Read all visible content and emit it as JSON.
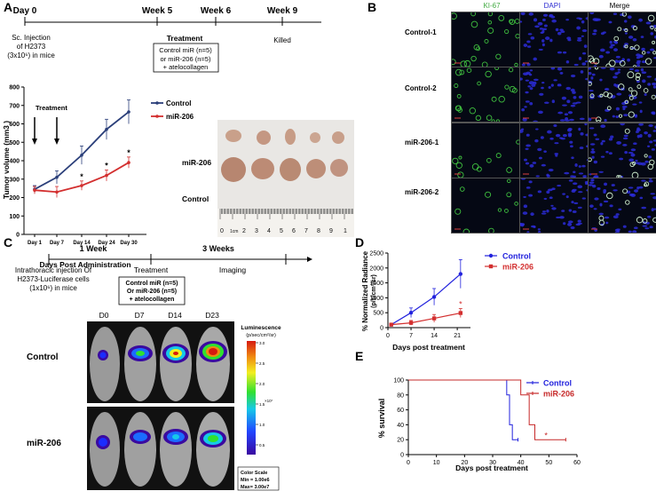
{
  "panel_labels": {
    "a": "A",
    "b": "B",
    "c": "C",
    "d": "D",
    "e": "E"
  },
  "timeline_a": {
    "points": [
      "Day 0",
      "Week 5",
      "Week 6",
      "Week 9"
    ],
    "injection": [
      "Sc. Injection",
      "of H2373",
      "(3x10⁶) in mice"
    ],
    "treatment_title": "Treatment",
    "treatment_box": [
      "Control miR (n=5)",
      "or miR-206 (n=5)",
      "+ atelocollagen"
    ],
    "killed": "Killed"
  },
  "photo_a": {
    "row_labels": [
      "miR-206",
      "Control"
    ],
    "ruler_numbers": [
      "0",
      "1cm",
      "2",
      "3",
      "4",
      "5",
      "6",
      "7",
      "8",
      "9",
      "1"
    ]
  },
  "timeline_c": {
    "labels": [
      "1 Week",
      "3 Weeks"
    ],
    "injection": [
      "Intrathoracic injection Of",
      "H2373-Luciferase cells",
      "(1x10⁶) in mice"
    ],
    "treatment_title": "Treatment",
    "imaging": "Imaging",
    "treatment_box": [
      "Control miR (n=5)",
      "Or miR-206 (n=5)",
      "+ atelocollagen"
    ]
  },
  "imaging_c": {
    "days": [
      "D0",
      "D7",
      "D14",
      "D23"
    ],
    "rows": [
      "Control",
      "miR-206"
    ],
    "colorbar_title": [
      "Luminescence",
      "(p/sec/cm²/sr)"
    ],
    "colorbar_ticks": [
      "3.0",
      "2.5",
      "2.0",
      "1.5",
      "1.0",
      "0.5"
    ],
    "colorbar_exp": "×10⁷",
    "scale_box": [
      "Color Scale",
      "Min = 1.00e6",
      "Max= 3.00e7"
    ]
  },
  "micro_b": {
    "col_headers": [
      "KI-67",
      "DAPI",
      "Merge"
    ],
    "row_labels": [
      "Control-1",
      "Control-2",
      "miR-206-1",
      "miR-206-2"
    ],
    "colors": {
      "ki67": "#3fbf3f",
      "dapi": "#3a3aff",
      "merge": "#ffffff"
    }
  },
  "chart_data": [
    {
      "id": "A",
      "type": "line",
      "categories": [
        "Day 1",
        "Day 7",
        "Day 14",
        "Day 24",
        "Day 30"
      ],
      "series": [
        {
          "name": "Control",
          "color": "#2b3f7a",
          "values": [
            245,
            310,
            430,
            570,
            665
          ],
          "errors": [
            20,
            35,
            50,
            55,
            65
          ]
        },
        {
          "name": "miR-206",
          "color": "#d32f2f",
          "values": [
            240,
            230,
            265,
            320,
            390
          ],
          "errors": [
            20,
            30,
            25,
            30,
            30
          ]
        }
      ],
      "ylabel": "Tumor volume (mm3 )",
      "xlabel": "Days Post Administration",
      "ylim": [
        0,
        800
      ],
      "yticks": [
        0,
        100,
        200,
        300,
        400,
        500,
        600,
        700,
        800
      ],
      "significance": [
        "",
        "",
        "*",
        "*",
        "*"
      ],
      "annotation": "Treatment",
      "arrows_at": [
        "Day 1",
        "Day 7"
      ],
      "legend": "right"
    },
    {
      "id": "D",
      "type": "line",
      "x": [
        1,
        7,
        14,
        22
      ],
      "series": [
        {
          "name": "Control",
          "color": "#2222dd",
          "values": [
            100,
            500,
            1030,
            1800
          ],
          "errors": [
            30,
            160,
            280,
            480
          ]
        },
        {
          "name": "miR-206",
          "color": "#d32f2f",
          "values": [
            100,
            160,
            310,
            490
          ],
          "errors": [
            30,
            80,
            130,
            150
          ]
        }
      ],
      "ylabel": "% Normalized Radiance",
      "ylabel2": "(p/s/cm²/sr)",
      "xlabel": "Days post treatment",
      "xlim": [
        0,
        25
      ],
      "xticks": [
        0,
        7,
        14,
        21
      ],
      "ylim": [
        0,
        2500
      ],
      "yticks": [
        0,
        500,
        1000,
        1500,
        2000,
        2500
      ],
      "significance_label": "*",
      "legend": "top-right"
    },
    {
      "id": "E",
      "type": "line",
      "series": [
        {
          "name": "Control",
          "color": "#2222dd",
          "steps": [
            [
              0,
              100
            ],
            [
              35,
              100
            ],
            [
              35,
              80
            ],
            [
              36,
              80
            ],
            [
              36,
              40
            ],
            [
              37,
              40
            ],
            [
              37,
              20
            ],
            [
              39,
              20
            ]
          ]
        },
        {
          "name": "miR-206",
          "color": "#c62828",
          "steps": [
            [
              0,
              100
            ],
            [
              40,
              100
            ],
            [
              40,
              80
            ],
            [
              43,
              80
            ],
            [
              43,
              40
            ],
            [
              45,
              40
            ],
            [
              45,
              20
            ],
            [
              56,
              20
            ]
          ]
        }
      ],
      "ylabel": "% survival",
      "xlabel": "Days post treatment",
      "xlim": [
        0,
        60
      ],
      "xticks": [
        0,
        10,
        20,
        30,
        40,
        50,
        60
      ],
      "ylim": [
        0,
        100
      ],
      "yticks": [
        0,
        20,
        40,
        60,
        80,
        100
      ],
      "significance_label": "*",
      "legend": "top-right"
    }
  ]
}
